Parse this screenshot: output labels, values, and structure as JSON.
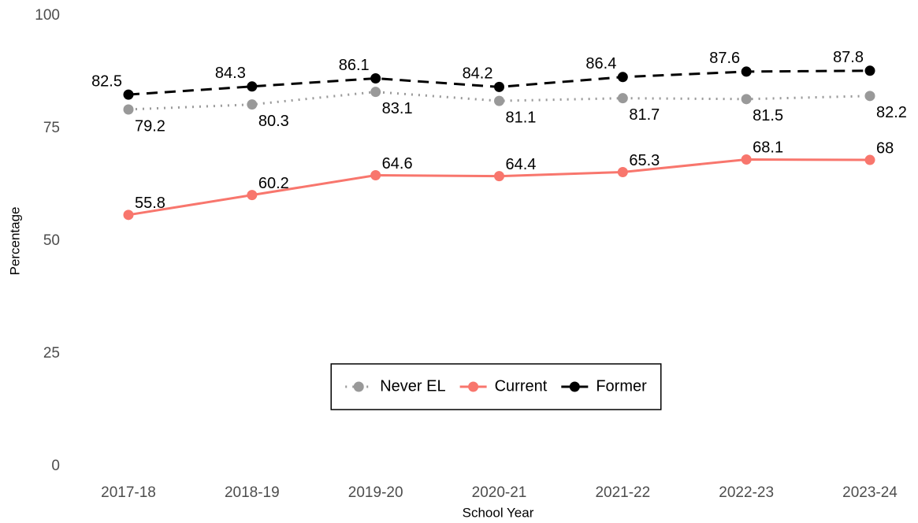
{
  "chart_data": {
    "type": "line",
    "x_label": "School Year",
    "y_label": "Percentage",
    "categories": [
      "2017-18",
      "2018-19",
      "2019-20",
      "2020-21",
      "2021-22",
      "2022-23",
      "2023-24"
    ],
    "series": [
      {
        "name": "Never EL",
        "color": "#999999",
        "line_style": "dotted",
        "values": [
          79.2,
          80.3,
          83.1,
          81.1,
          81.7,
          81.5,
          82.2
        ]
      },
      {
        "name": "Current",
        "color": "#f8766d",
        "line_style": "solid",
        "values": [
          55.8,
          60.2,
          64.6,
          64.4,
          65.3,
          68.1,
          68
        ]
      },
      {
        "name": "Former",
        "color": "#000000",
        "line_style": "dashed",
        "values": [
          82.5,
          84.3,
          86.1,
          84.2,
          86.4,
          87.6,
          87.8
        ]
      }
    ],
    "ylim": [
      0,
      100
    ],
    "yticks": [
      0,
      25,
      50,
      75,
      100
    ],
    "grid": false,
    "legend": "bottom"
  }
}
